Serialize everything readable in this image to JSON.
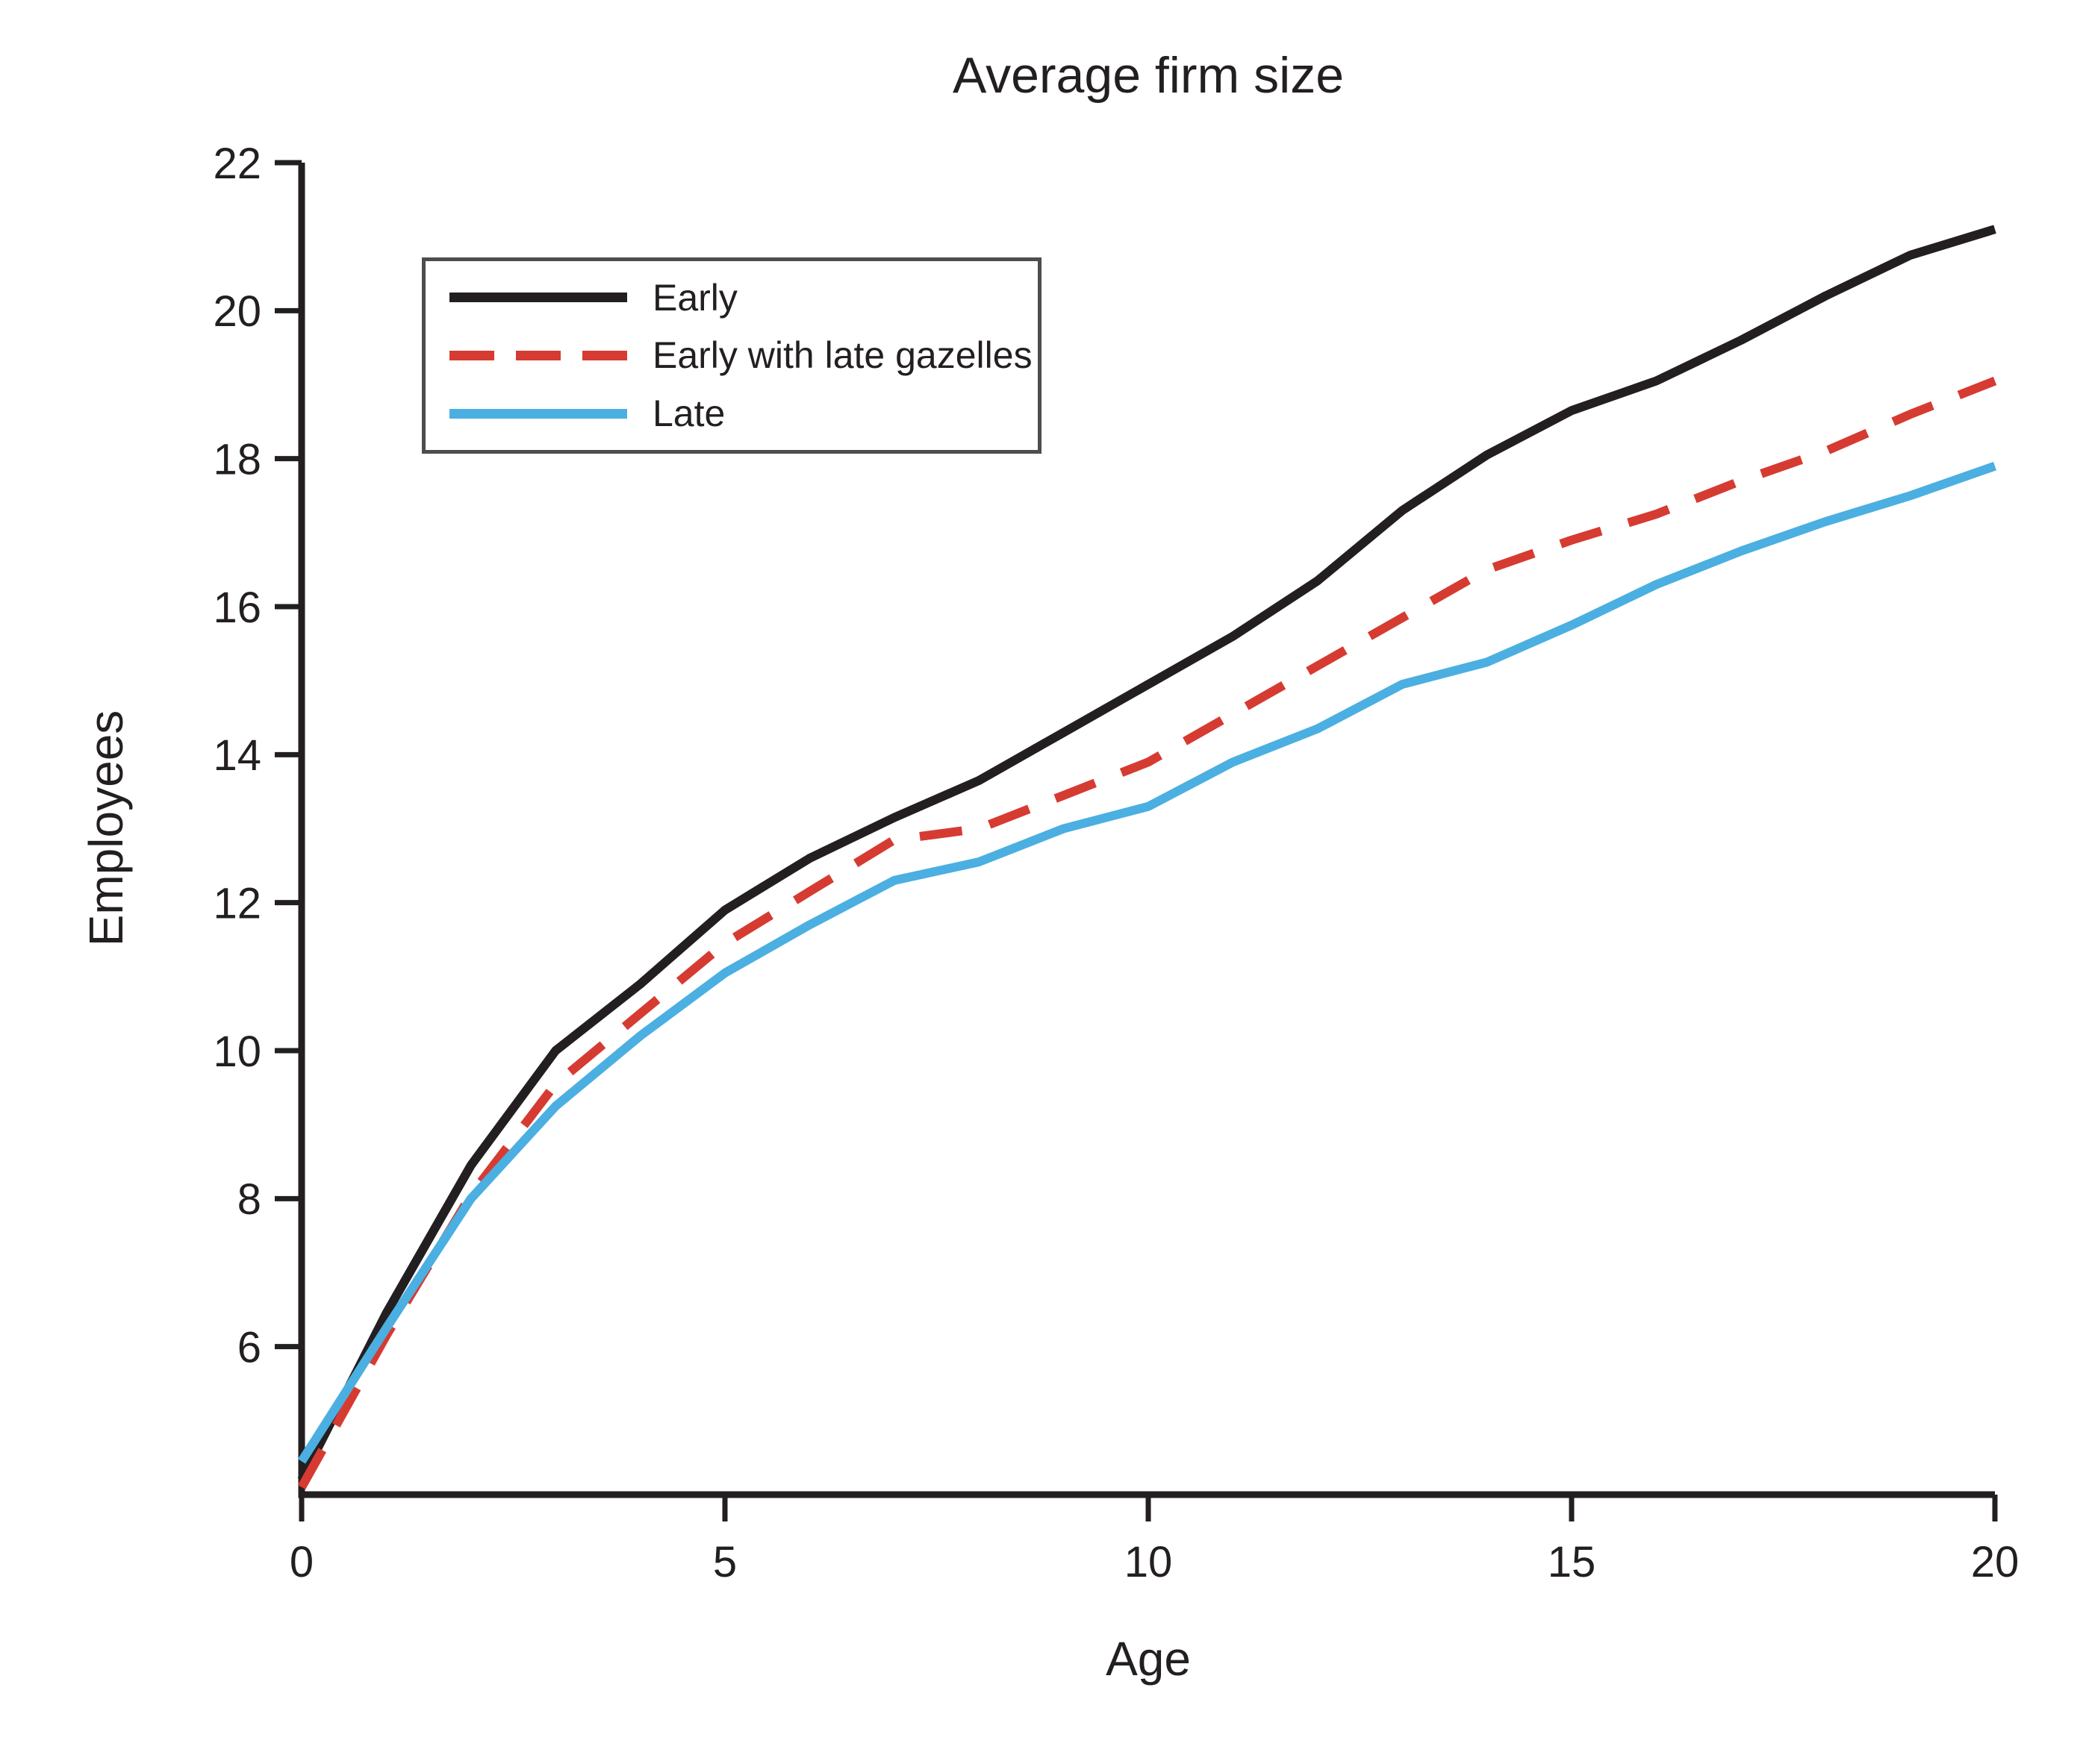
{
  "chart_data": {
    "type": "line",
    "title": "Average firm size",
    "xlabel": "Age",
    "ylabel": "Employees",
    "xlim": [
      0,
      20
    ],
    "ylim": [
      4,
      22
    ],
    "xticks": [
      0,
      5,
      10,
      15,
      20
    ],
    "yticks": [
      6,
      8,
      10,
      12,
      14,
      16,
      18,
      20,
      22
    ],
    "grid": false,
    "legend_position": "upper-left-inside",
    "axis_color": "#231f20",
    "legend_border_color": "#4d4d4d",
    "x": [
      0,
      1,
      2,
      3,
      4,
      5,
      6,
      7,
      8,
      9,
      10,
      11,
      12,
      13,
      14,
      15,
      16,
      17,
      18,
      19,
      20
    ],
    "series": [
      {
        "name": "Early",
        "color": "#231f20",
        "dash": false,
        "values": [
          4.2,
          6.45,
          8.45,
          10.0,
          10.9,
          11.9,
          12.6,
          13.15,
          13.65,
          14.3,
          14.95,
          15.6,
          16.35,
          17.3,
          18.05,
          18.65,
          19.05,
          19.6,
          20.2,
          20.75,
          21.1
        ]
      },
      {
        "name": "Early with late gazelles",
        "color": "#d63b32",
        "dash": true,
        "values": [
          4.1,
          6.15,
          8.05,
          9.55,
          10.5,
          11.45,
          12.15,
          12.85,
          13.0,
          13.45,
          13.9,
          14.55,
          15.2,
          15.85,
          16.5,
          16.9,
          17.25,
          17.7,
          18.1,
          18.6,
          19.05
        ]
      },
      {
        "name": "Late",
        "color": "#4bafe1",
        "dash": false,
        "values": [
          4.45,
          6.25,
          8.0,
          9.25,
          10.2,
          11.05,
          11.7,
          12.3,
          12.55,
          13.0,
          13.3,
          13.9,
          14.35,
          14.95,
          15.25,
          15.75,
          16.3,
          16.75,
          17.15,
          17.5,
          17.9
        ]
      }
    ]
  }
}
